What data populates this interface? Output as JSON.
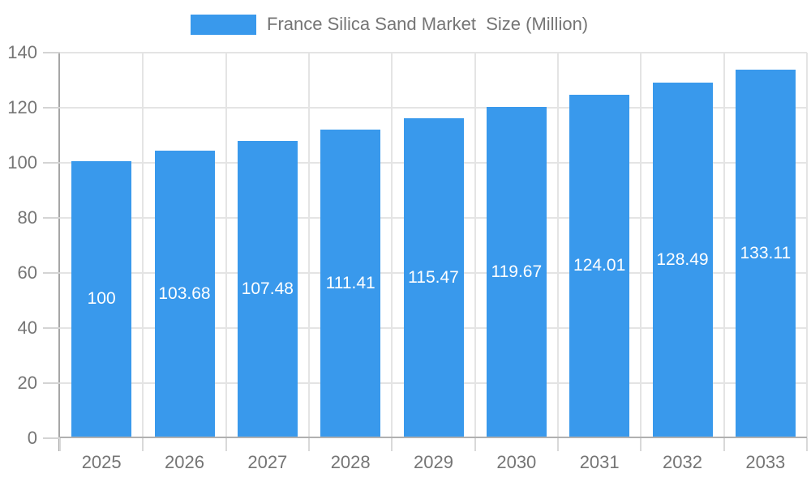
{
  "legend": {
    "label": "France Silica Sand Market  Size (Million)"
  },
  "chart_data": {
    "type": "bar",
    "title": "France Silica Sand Market  Size (Million)",
    "categories": [
      "2025",
      "2026",
      "2027",
      "2028",
      "2029",
      "2030",
      "2031",
      "2032",
      "2033"
    ],
    "values": [
      100,
      103.68,
      107.48,
      111.41,
      115.47,
      119.67,
      124.01,
      128.49,
      133.11
    ],
    "value_labels": [
      "100",
      "103.68",
      "107.48",
      "111.41",
      "115.47",
      "119.67",
      "124.01",
      "128.49",
      "133.11"
    ],
    "xlabel": "",
    "ylabel": "",
    "ylim": [
      0,
      140
    ],
    "ytick_step": 20,
    "grid": true,
    "legend_position": "top",
    "colors": {
      "bar": "#3999ec",
      "grid": "#e4e4e4",
      "axis": "#a6a6a6",
      "tick": "#d4d4d4",
      "text": "#757575",
      "bar_label": "#ffffff"
    }
  }
}
